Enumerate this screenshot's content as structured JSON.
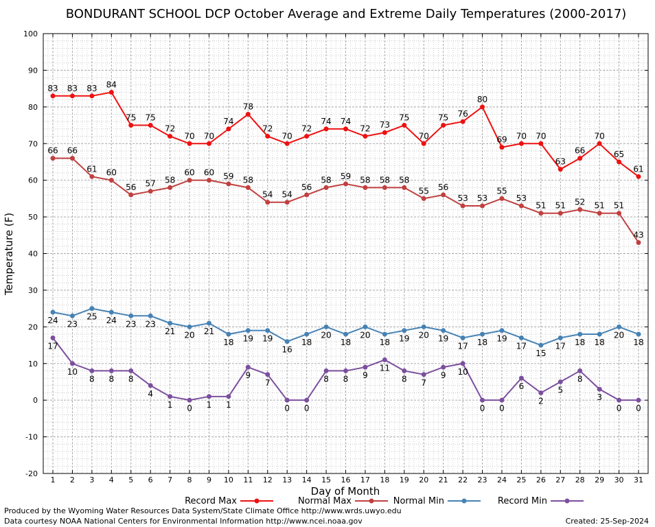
{
  "chart_data": {
    "type": "line",
    "title": "BONDURANT SCHOOL DCP October Average and Extreme Daily Temperatures (2000-2017)",
    "xlabel": "Day of Month",
    "ylabel": "Temperature (F)",
    "xlim": [
      1,
      31
    ],
    "ylim": [
      -20,
      100
    ],
    "yticks": [
      -20,
      -10,
      0,
      10,
      20,
      30,
      40,
      50,
      60,
      70,
      80,
      90,
      100
    ],
    "x": [
      1,
      2,
      3,
      4,
      5,
      6,
      7,
      8,
      9,
      10,
      11,
      12,
      13,
      14,
      15,
      16,
      17,
      18,
      19,
      20,
      21,
      22,
      23,
      24,
      25,
      26,
      27,
      28,
      29,
      30,
      31
    ],
    "grid": true,
    "legend_position": "bottom",
    "series": [
      {
        "name": "Record Max",
        "color": "#ee1111",
        "label_pos": "above",
        "values": [
          83,
          83,
          83,
          84,
          75,
          75,
          72,
          70,
          70,
          74,
          78,
          72,
          70,
          72,
          74,
          74,
          72,
          73,
          75,
          70,
          75,
          76,
          80,
          69,
          70,
          70,
          63,
          66,
          70,
          65,
          61
        ]
      },
      {
        "name": "Normal Max",
        "color": "#c04040",
        "label_pos": "above",
        "values": [
          66,
          66,
          61,
          60,
          56,
          57,
          58,
          60,
          60,
          59,
          58,
          54,
          54,
          56,
          58,
          59,
          58,
          58,
          58,
          55,
          56,
          53,
          53,
          55,
          53,
          51,
          51,
          52,
          51,
          51,
          43
        ]
      },
      {
        "name": "Normal Min",
        "color": "#4682b4",
        "label_pos": "below",
        "values": [
          24,
          23,
          25,
          24,
          23,
          23,
          21,
          20,
          21,
          18,
          19,
          19,
          16,
          18,
          20,
          18,
          20,
          18,
          19,
          20,
          19,
          17,
          18,
          19,
          17,
          15,
          17,
          18,
          18,
          20,
          18
        ]
      },
      {
        "name": "Record Min",
        "color": "#7b4f9e",
        "label_pos": "below",
        "values": [
          17,
          10,
          8,
          8,
          8,
          4,
          1,
          0,
          1,
          1,
          9,
          7,
          0,
          0,
          8,
          8,
          9,
          11,
          8,
          7,
          9,
          10,
          0,
          0,
          6,
          2,
          5,
          8,
          3,
          0,
          0
        ]
      }
    ]
  },
  "footer": {
    "produced_by": "Produced by the Wyoming Water Resources Data System/State Climate Office http://www.wrds.uwyo.edu",
    "courtesy": "Data courtesy NOAA National Centers for Environmental Information http://www.ncei.noaa.gov",
    "created": "Created:  25-Sep-2024"
  }
}
